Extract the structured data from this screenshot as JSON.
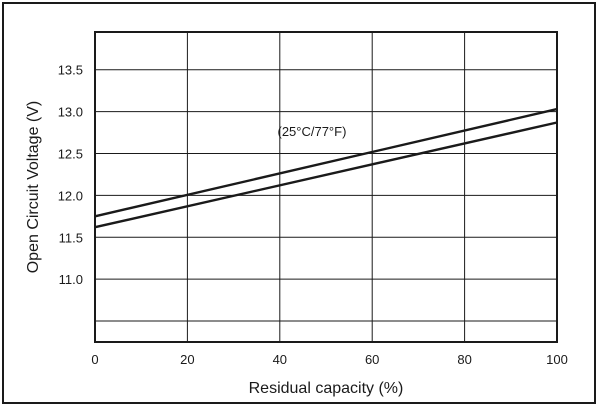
{
  "chart_data": {
    "type": "line",
    "xlabel": "Residual capacity (%)",
    "ylabel": "Open Circuit Voltage (V)",
    "annotation": "(25°C/77°F)",
    "xlim": [
      0,
      100
    ],
    "ylim": [
      10.25,
      13.95
    ],
    "x_ticks": [
      0,
      20,
      40,
      60,
      80,
      100
    ],
    "y_ticks": [
      11.0,
      11.5,
      12.0,
      12.5,
      13.0,
      13.5
    ],
    "y_tick_labels": [
      "11.0",
      "11.5",
      "12.0",
      "12.5",
      "13.0",
      "13.5"
    ],
    "grid": true,
    "series": [
      {
        "x": [
          0,
          100
        ],
        "y": [
          11.75,
          13.03
        ]
      },
      {
        "x": [
          0,
          100
        ],
        "y": [
          11.62,
          12.87
        ]
      }
    ],
    "colors": {
      "line": "#1a1a1a",
      "grid": "#1a1a1a"
    }
  }
}
